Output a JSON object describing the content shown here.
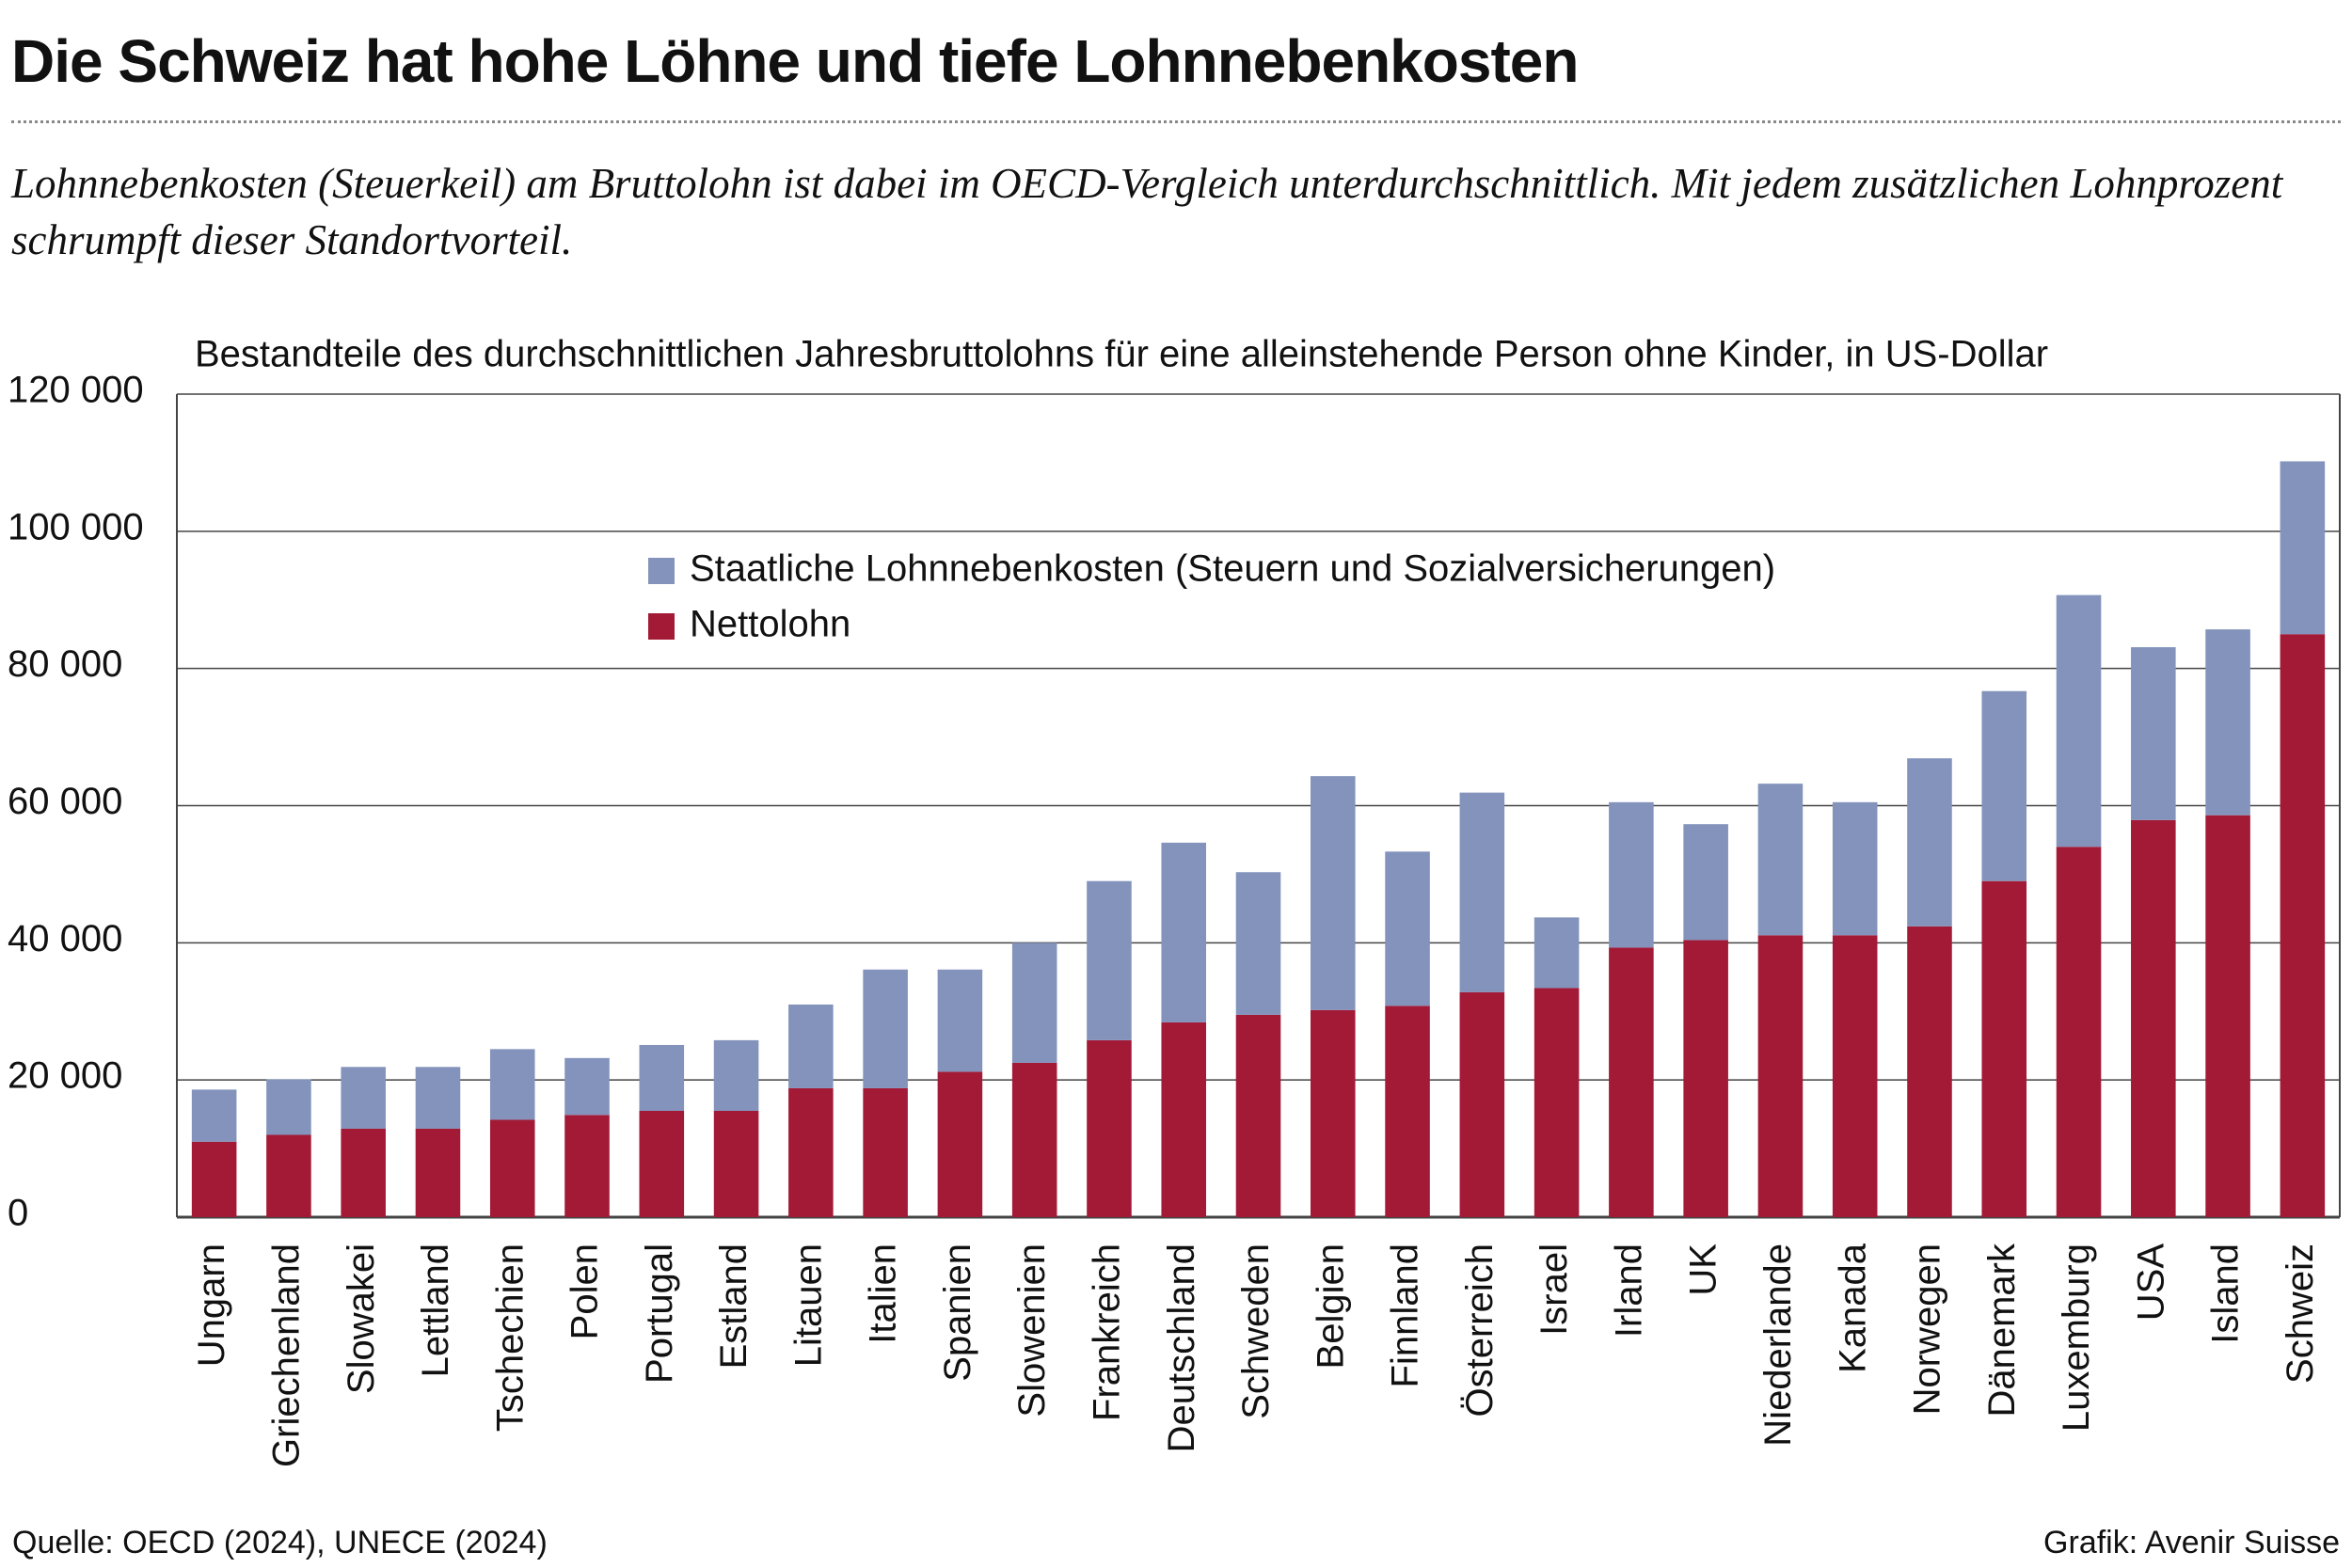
{
  "chart_data": {
    "type": "stacked-bar",
    "title": "Die Schweiz hat hohe Löhne und tiefe Lohnnebenkosten",
    "subtitle": "Lohnnebenkosten (Steuerkeil) am Bruttolohn ist dabei im OECD-Vergleich unterdurchschnittlich. Mit jedem zusätzlichen Lohnprozent schrumpft dieser Standortvorteil.",
    "y_label": "Bestandteile des durchschnittlichen Jahresbruttolohns für eine alleinstehende Person ohne Kinder, in US-Dollar",
    "source": "Quelle: OECD (2024), UNECE (2024)",
    "credit": "Grafik: Avenir Suisse",
    "categories": [
      "Ungarn",
      "Griechenland",
      "Slowakei",
      "Lettland",
      "Tschechien",
      "Polen",
      "Portugal",
      "Estland",
      "Litauen",
      "Italien",
      "Spanien",
      "Slowenien",
      "Frankreich",
      "Deutschland",
      "Schweden",
      "Belgien",
      "Finnland",
      "Österreich",
      "Israel",
      "Irland",
      "UK",
      "Niederlande",
      "Kanada",
      "Norwegen",
      "Dänemark",
      "Luxemburg",
      "USA",
      "Island",
      "Schweiz"
    ],
    "series": [
      {
        "name": "Nettolohn",
        "color": "#a31a37",
        "values": [
          11000,
          12000,
          12900,
          12900,
          14200,
          14900,
          15500,
          15500,
          18800,
          18800,
          21200,
          22500,
          25800,
          28400,
          29500,
          30200,
          30800,
          32800,
          33400,
          39300,
          40400,
          41100,
          41100,
          42400,
          49000,
          54000,
          57900,
          58600,
          85000
        ]
      },
      {
        "name": "Staatliche Lohnnebenkosten (Steuern und Sozialversicherungen)",
        "color": "#8393bb",
        "values": [
          7600,
          8100,
          9000,
          9000,
          10300,
          8300,
          9600,
          10300,
          12200,
          17300,
          14900,
          17500,
          23200,
          26200,
          20800,
          34100,
          22500,
          29100,
          10300,
          21200,
          16900,
          22100,
          19400,
          24500,
          27700,
          36700,
          25200,
          27100,
          25200
        ]
      }
    ],
    "ylim": [
      0,
      120000
    ],
    "yticks": [
      0,
      {
        "value": 20000,
        "label": "20 000"
      },
      {
        "value": 40000,
        "label": "40 000"
      },
      {
        "value": 60000,
        "label": "60 000"
      },
      {
        "value": 80000,
        "label": "80 000"
      },
      {
        "value": 100000,
        "label": "100 000"
      },
      {
        "value": 120000,
        "label": "120 000"
      }
    ],
    "grid": true
  }
}
